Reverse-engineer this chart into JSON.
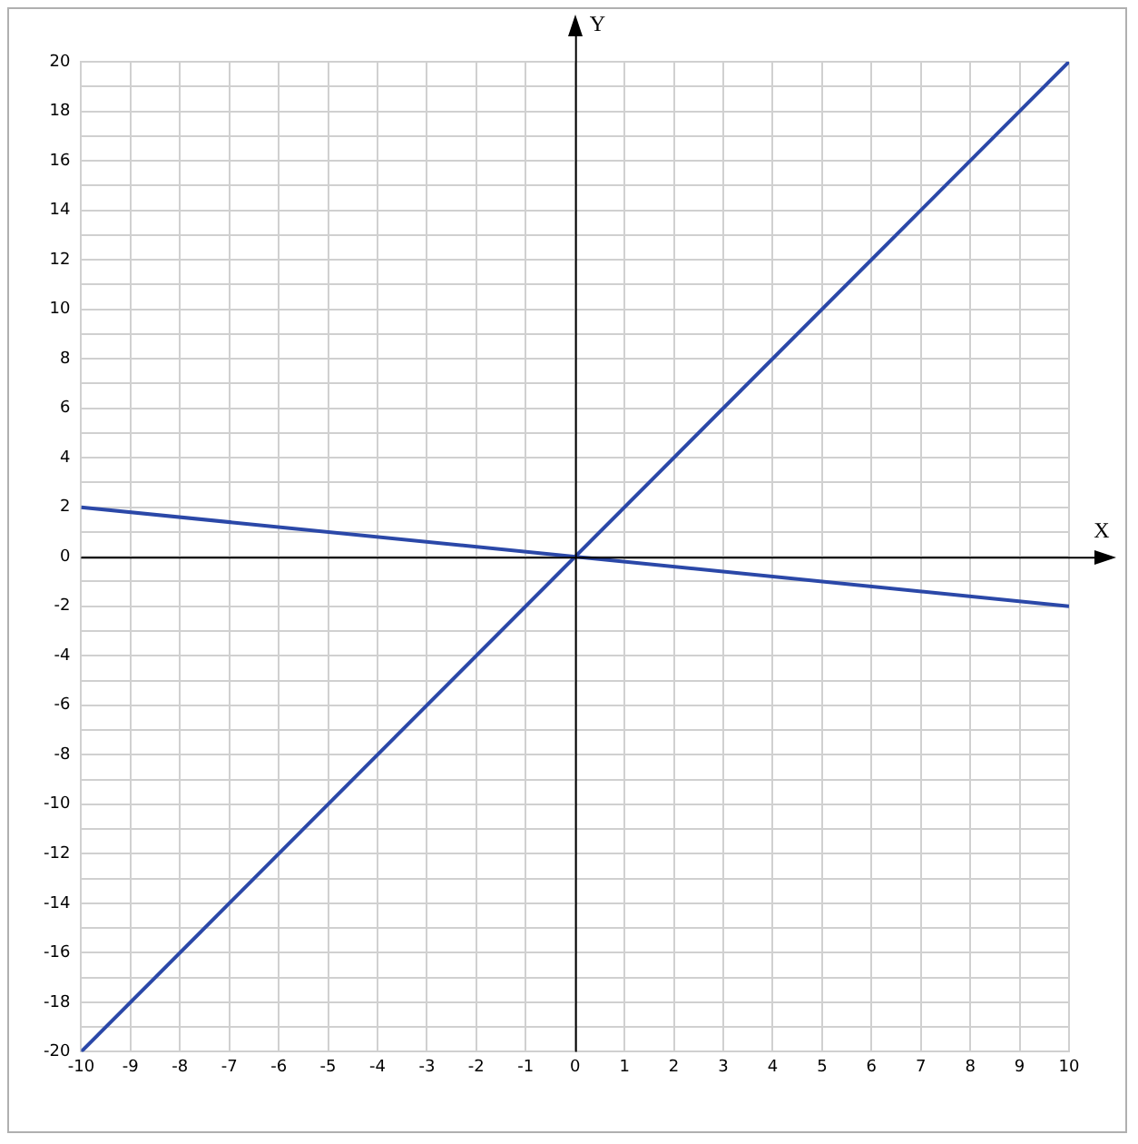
{
  "chart_data": {
    "type": "line",
    "xlabel": "X",
    "ylabel": "Y",
    "x": [
      -10,
      10
    ],
    "series": [
      {
        "color": "#2b48a8",
        "values": [
          -20,
          20
        ]
      },
      {
        "color": "#2b48a8",
        "values": [
          2,
          -2
        ]
      }
    ],
    "xlim": [
      -10,
      10
    ],
    "xticks": [
      -10,
      -9,
      -8,
      -7,
      -6,
      -5,
      -4,
      -3,
      -2,
      -1,
      0,
      1,
      2,
      3,
      4,
      5,
      6,
      7,
      8,
      9,
      10
    ],
    "ylim": [
      -20,
      20
    ],
    "yticks": [
      -20,
      {
        "value": -19,
        "label": null
      },
      -18,
      {
        "value": -17,
        "label": null
      },
      -16,
      {
        "value": -15,
        "label": null
      },
      -14,
      {
        "value": -13,
        "label": null
      },
      -12,
      {
        "value": -11,
        "label": null
      },
      -10,
      {
        "value": -9,
        "label": null
      },
      -8,
      {
        "value": -7,
        "label": null
      },
      -6,
      {
        "value": -5,
        "label": null
      },
      -4,
      {
        "value": -3,
        "label": null
      },
      -2,
      {
        "value": -1,
        "label": null
      },
      0,
      {
        "value": 1,
        "label": null
      },
      2,
      {
        "value": 3,
        "label": null
      },
      4,
      {
        "value": 5,
        "label": null
      },
      6,
      {
        "value": 7,
        "label": null
      },
      8,
      {
        "value": 9,
        "label": null
      },
      10,
      {
        "value": 11,
        "label": null
      },
      12,
      {
        "value": 13,
        "label": null
      },
      14,
      {
        "value": 15,
        "label": null
      },
      16,
      {
        "value": 17,
        "label": null
      },
      18,
      {
        "value": 19,
        "label": null
      },
      20
    ],
    "grid": true,
    "legend": false,
    "marker": "none",
    "line_style": "solid"
  }
}
